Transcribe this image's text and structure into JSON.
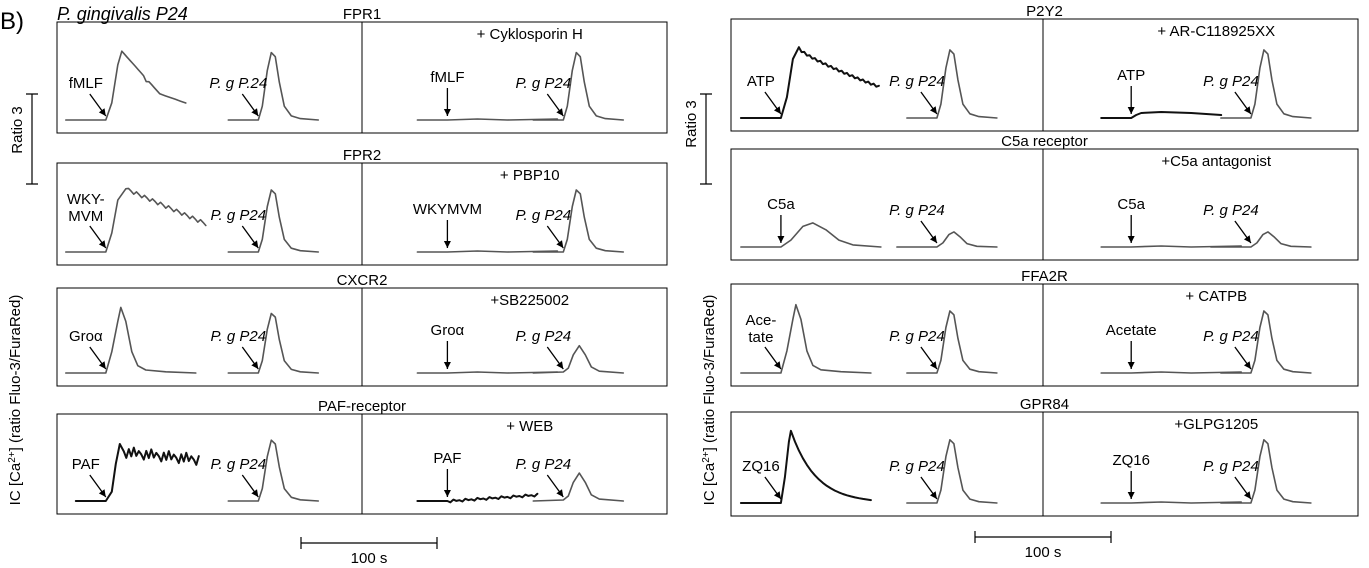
{
  "figure": {
    "panel_letter": "B)",
    "strain_title": "P. gingivalis P24",
    "ratio_scale_label": "Ratio 3",
    "y_axis_label_pre": "IC [Ca",
    "y_axis_label_sup": "2+",
    "y_axis_label_post": "] (ratio Fluo-3/FuraRed)",
    "time_scale_label": "100 s"
  },
  "columns": [
    {
      "panels": [
        {
          "receptor": "FPR1",
          "inhibitor": "+ Cyklosporin H",
          "left": [
            {
              "label": "fMLF",
              "type": "fast"
            },
            {
              "label": "P. g P.24",
              "italic": true,
              "type": "peak"
            }
          ],
          "right": [
            {
              "label": "fMLF",
              "type": "flat"
            },
            {
              "label": "P. g P24",
              "italic": true,
              "type": "peak"
            }
          ]
        },
        {
          "receptor": "FPR2",
          "inhibitor": "+ PBP10",
          "left": [
            {
              "label": "WKY-",
              "label2": "MVM",
              "type": "fast_decay"
            },
            {
              "label": "P. g P24",
              "italic": true,
              "type": "peak"
            }
          ],
          "right": [
            {
              "label": "WKYMVM",
              "type": "flat"
            },
            {
              "label": "P. g P24",
              "italic": true,
              "type": "peak"
            }
          ]
        },
        {
          "receptor": "CXCR2",
          "inhibitor": "+SB225002",
          "left": [
            {
              "label": "Groα",
              "type": "sharp"
            },
            {
              "label": "P. g P24",
              "italic": true,
              "type": "peak"
            }
          ],
          "right": [
            {
              "label": "Groα",
              "type": "flat"
            },
            {
              "label": "P. g P24",
              "italic": true,
              "type": "small_peak"
            }
          ]
        },
        {
          "receptor": "PAF-receptor",
          "inhibitor": "+ WEB",
          "left": [
            {
              "label": "PAF",
              "type": "plateau"
            },
            {
              "label": "P. g P24",
              "italic": true,
              "type": "peak"
            }
          ],
          "right": [
            {
              "label": "PAF",
              "type": "slow_rise"
            },
            {
              "label": "P. g P24",
              "italic": true,
              "type": "small_peak"
            }
          ]
        }
      ]
    },
    {
      "panels": [
        {
          "receptor": "P2Y2",
          "inhibitor": "+ AR-C118925XX",
          "left": [
            {
              "label": "ATP",
              "type": "atp"
            },
            {
              "label": "P. g P24",
              "italic": true,
              "type": "peak"
            }
          ],
          "right": [
            {
              "label": "ATP",
              "type": "tiny_bump"
            },
            {
              "label": "P. g P24",
              "italic": true,
              "type": "peak"
            }
          ]
        },
        {
          "receptor": "C5a receptor",
          "inhibitor": "+C5a antagonist",
          "left": [
            {
              "label": "C5a",
              "type": "broad"
            },
            {
              "label": "P. g P24",
              "italic": true,
              "type": "small_bump"
            }
          ],
          "right": [
            {
              "label": "C5a",
              "type": "flat"
            },
            {
              "label": "P. g P24",
              "italic": true,
              "type": "small_bump"
            }
          ]
        },
        {
          "receptor": "FFA2R",
          "inhibitor": "+ CATPB",
          "left": [
            {
              "label": "Ace-",
              "label2": "tate",
              "type": "sharp"
            },
            {
              "label": "P. g P24",
              "italic": true,
              "type": "peak"
            }
          ],
          "right": [
            {
              "label": "Acetate",
              "type": "flat"
            },
            {
              "label": "P. g P24",
              "italic": true,
              "type": "peak"
            }
          ]
        },
        {
          "receptor": "GPR84",
          "inhibitor": "+GLPG1205",
          "left": [
            {
              "label": "ZQ16",
              "type": "zq"
            },
            {
              "label": "P. g P24",
              "italic": true,
              "type": "peak"
            }
          ],
          "right": [
            {
              "label": "ZQ16",
              "type": "flat"
            },
            {
              "label": "P. g P24",
              "italic": true,
              "type": "peak"
            }
          ]
        }
      ]
    }
  ]
}
